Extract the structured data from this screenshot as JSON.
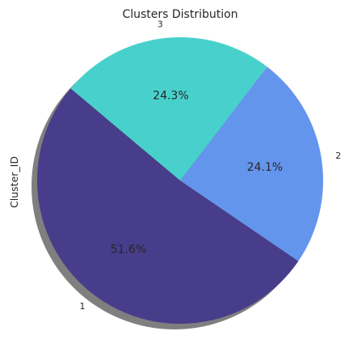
{
  "chart_data": {
    "type": "pie",
    "title": "Clusters Distribution",
    "ylabel": "Cluster_ID",
    "slices": [
      {
        "label": "1",
        "value": 51.6,
        "pct_label": "51.6%",
        "color": "#483D8B"
      },
      {
        "label": "2",
        "value": 24.1,
        "pct_label": "24.1%",
        "color": "#6495ED"
      },
      {
        "label": "3",
        "value": 24.3,
        "pct_label": "24.3%",
        "color": "#48D1CC"
      }
    ],
    "start_angle": 140,
    "direction": "counterclockwise",
    "shadow": true,
    "legend": "none"
  }
}
